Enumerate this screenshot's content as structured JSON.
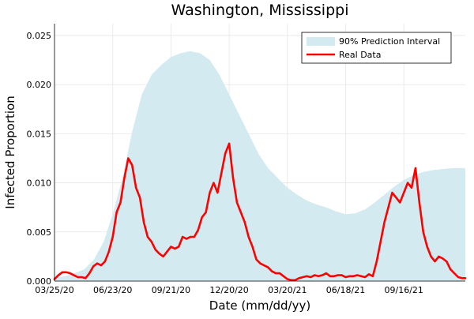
{
  "chart_data": {
    "type": "area",
    "title": "Washington, Mississippi",
    "xlabel": "Date (mm/dd/yy)",
    "ylabel": "Infected Proportion",
    "x_ticks": [
      "03/25/20",
      "06/23/20",
      "09/21/20",
      "12/20/20",
      "03/20/21",
      "06/18/21",
      "09/16/21"
    ],
    "y_ticks": [
      "0.000",
      "0.005",
      "0.010",
      "0.015",
      "0.020",
      "0.025"
    ],
    "x_range": [
      "03/25/20",
      "12/20/21"
    ],
    "ylim": [
      0,
      0.0262
    ],
    "grid": true,
    "legend_position": "top-right",
    "colors": {
      "band": "#d2eaf0",
      "real": "#ff0000"
    },
    "series": [
      {
        "name": "90% Prediction Interval",
        "kind": "band",
        "x": [
          "03/25/20",
          "04/10/20",
          "04/25/20",
          "05/10/20",
          "05/25/20",
          "06/09/20",
          "06/23/20",
          "07/08/20",
          "07/23/20",
          "08/07/20",
          "08/22/20",
          "09/06/20",
          "09/21/20",
          "10/06/20",
          "10/21/20",
          "11/05/20",
          "11/20/20",
          "12/05/20",
          "12/20/20",
          "01/04/21",
          "01/19/21",
          "02/03/21",
          "02/18/21",
          "03/05/21",
          "03/20/21",
          "04/04/21",
          "04/19/21",
          "05/04/21",
          "05/19/21",
          "06/03/21",
          "06/18/21",
          "07/03/21",
          "07/18/21",
          "08/02/21",
          "08/17/21",
          "09/01/21",
          "09/16/21",
          "10/01/21",
          "10/16/21",
          "10/31/21",
          "11/15/21",
          "11/30/21",
          "12/20/21"
        ],
        "upper": [
          0.0003,
          0.0005,
          0.0008,
          0.0012,
          0.0022,
          0.004,
          0.0068,
          0.0105,
          0.0152,
          0.019,
          0.021,
          0.022,
          0.0228,
          0.0232,
          0.0234,
          0.0232,
          0.0225,
          0.021,
          0.019,
          0.017,
          0.015,
          0.013,
          0.0115,
          0.0105,
          0.0095,
          0.0088,
          0.0082,
          0.0078,
          0.0075,
          0.0071,
          0.0068,
          0.0069,
          0.0073,
          0.008,
          0.0088,
          0.0096,
          0.0103,
          0.0108,
          0.0111,
          0.0113,
          0.0114,
          0.0115,
          0.0115
        ],
        "lower": [
          0,
          0,
          0,
          0,
          0,
          0,
          0,
          0,
          0,
          0,
          0,
          0,
          0,
          0,
          0,
          0,
          0,
          0,
          0,
          0,
          0,
          0,
          0,
          0,
          0,
          0,
          0,
          0,
          0,
          0,
          0,
          0,
          0,
          0,
          0,
          0,
          0,
          0,
          0,
          0,
          0,
          0,
          0
        ]
      },
      {
        "name": "Real Data",
        "kind": "line",
        "x": [
          "03/25/20",
          "03/31/20",
          "04/06/20",
          "04/12/20",
          "04/18/20",
          "04/24/20",
          "04/30/20",
          "05/06/20",
          "05/12/20",
          "05/18/20",
          "05/24/20",
          "05/30/20",
          "06/05/20",
          "06/11/20",
          "06/17/20",
          "06/23/20",
          "06/29/20",
          "07/05/20",
          "07/11/20",
          "07/17/20",
          "07/23/20",
          "07/29/20",
          "08/04/20",
          "08/10/20",
          "08/16/20",
          "08/22/20",
          "08/28/20",
          "09/03/20",
          "09/09/20",
          "09/15/20",
          "09/21/20",
          "09/27/20",
          "10/03/20",
          "10/09/20",
          "10/15/20",
          "10/21/20",
          "10/27/20",
          "11/02/20",
          "11/08/20",
          "11/14/20",
          "11/20/20",
          "11/26/20",
          "12/02/20",
          "12/08/20",
          "12/14/20",
          "12/20/20",
          "12/26/20",
          "01/01/21",
          "01/07/21",
          "01/13/21",
          "01/19/21",
          "01/25/21",
          "01/31/21",
          "02/06/21",
          "02/12/21",
          "02/18/21",
          "02/24/21",
          "03/02/21",
          "03/08/21",
          "03/14/21",
          "03/20/21",
          "03/26/21",
          "04/01/21",
          "04/07/21",
          "04/13/21",
          "04/19/21",
          "04/25/21",
          "05/01/21",
          "05/07/21",
          "05/13/21",
          "05/19/21",
          "05/25/21",
          "05/31/21",
          "06/06/21",
          "06/12/21",
          "06/18/21",
          "06/24/21",
          "06/30/21",
          "07/06/21",
          "07/12/21",
          "07/18/21",
          "07/24/21",
          "07/30/21",
          "08/05/21",
          "08/11/21",
          "08/17/21",
          "08/23/21",
          "08/29/21",
          "09/04/21",
          "09/10/21",
          "09/16/21",
          "09/22/21",
          "09/28/21",
          "10/04/21",
          "10/10/21",
          "10/16/21",
          "10/22/21",
          "10/28/21",
          "11/03/21",
          "11/09/21",
          "11/15/21",
          "11/21/21",
          "11/27/21",
          "12/03/21",
          "12/09/21",
          "12/15/21",
          "12/20/21"
        ],
        "values": [
          0.0002,
          0.0006,
          0.0009,
          0.0009,
          0.0008,
          0.0006,
          0.0004,
          0.0004,
          0.0003,
          0.0008,
          0.0015,
          0.0018,
          0.0016,
          0.002,
          0.003,
          0.0045,
          0.007,
          0.008,
          0.0105,
          0.0125,
          0.0118,
          0.0095,
          0.0085,
          0.006,
          0.0045,
          0.004,
          0.0032,
          0.0028,
          0.0025,
          0.003,
          0.0035,
          0.0033,
          0.0035,
          0.0045,
          0.0043,
          0.0045,
          0.0045,
          0.0052,
          0.0065,
          0.007,
          0.009,
          0.01,
          0.009,
          0.011,
          0.013,
          0.014,
          0.0105,
          0.008,
          0.007,
          0.006,
          0.0045,
          0.0035,
          0.0022,
          0.0018,
          0.0016,
          0.0014,
          0.001,
          0.0008,
          0.0008,
          0.0005,
          0.0002,
          0.0001,
          0.0001,
          0.0003,
          0.0004,
          0.0005,
          0.0004,
          0.0006,
          0.0005,
          0.0006,
          0.0008,
          0.0005,
          0.0005,
          0.0006,
          0.0006,
          0.0004,
          0.0005,
          0.0005,
          0.0006,
          0.0005,
          0.0004,
          0.0007,
          0.0005,
          0.002,
          0.004,
          0.006,
          0.0075,
          0.009,
          0.0085,
          0.008,
          0.009,
          0.01,
          0.0095,
          0.0115,
          0.008,
          0.005,
          0.0035,
          0.0025,
          0.002,
          0.0025,
          0.0023,
          0.002,
          0.0012,
          0.0008,
          0.0004,
          0.0003,
          0.0003
        ]
      }
    ]
  }
}
